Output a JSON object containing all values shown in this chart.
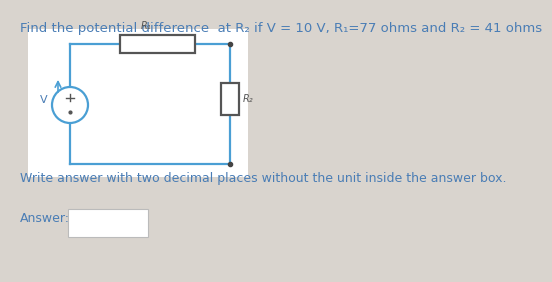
{
  "bg_color": "#d9d4ce",
  "circuit_bg": "#ffffff",
  "title_text": "Find the potential difference  at R₂ if V = 10 V, R₁=77 ohms and R₂ = 41 ohms",
  "title_color": "#4a7db5",
  "title_fontsize": 9.5,
  "instruction_text": "Write answer with two decimal places without the unit inside the answer box.",
  "instruction_color": "#4a7db5",
  "instruction_fontsize": 9.0,
  "answer_label": "Answer:",
  "answer_color": "#4a7db5",
  "answer_fontsize": 9.0,
  "circuit_color": "#4a9fd4",
  "r1_label": "R₁",
  "r2_label": "R₂",
  "v_label": "V"
}
